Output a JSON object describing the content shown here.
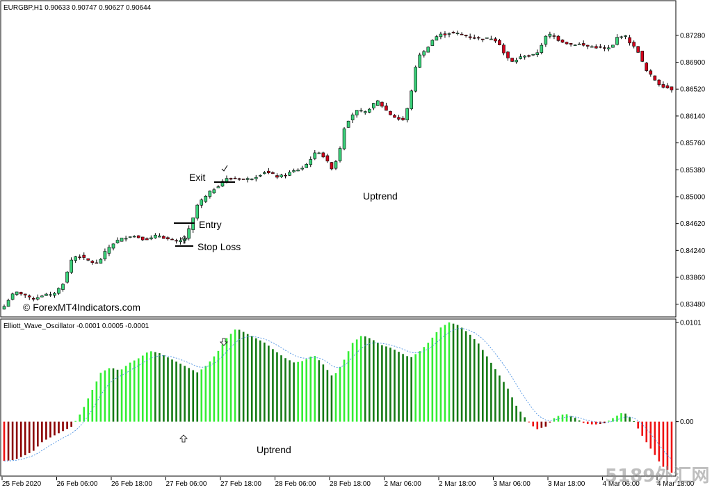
{
  "header": {
    "symbol_info": "EURGBP,H1  0.90633 0.90747 0.90627 0.90644",
    "indicator_info": "Elliott_Wave_Oscillator -0.0001 0.0005 -0.0001"
  },
  "annotations": {
    "exit": "Exit",
    "entry": "Entry",
    "stop_loss": "Stop Loss",
    "uptrend_price": "Uptrend",
    "uptrend_osc": "Uptrend",
    "copyright": "© ForexMT4Indicators.com",
    "watermark": "5189外汇网"
  },
  "colors": {
    "bull_candle": "#3ad17a",
    "bear_candle": "#d0021b",
    "osc_bright_green": "#33ee33",
    "osc_dark_green": "#157a15",
    "osc_red": "#ee1111",
    "osc_dark_red": "#8b0000",
    "signal_line": "#4a90e2"
  },
  "chart_data": [
    {
      "type": "candlestick",
      "title": "EURGBP,H1",
      "ylim": [
        0.8332,
        0.8775
      ],
      "y_ticks": [
        "0.87280",
        "0.86900",
        "0.86520",
        "0.86140",
        "0.85760",
        "0.85380",
        "0.85000",
        "0.84620",
        "0.84240",
        "0.83860",
        "0.83480"
      ],
      "x_ticks": [
        "25 Feb 2020",
        "26 Feb 06:00",
        "26 Feb 18:00",
        "27 Feb 06:00",
        "27 Feb 18:00",
        "28 Feb 06:00",
        "28 Feb 18:00",
        "2 Mar 06:00",
        "2 Mar 18:00",
        "3 Mar 06:00",
        "3 Mar 18:00",
        "4 Mar 06:00",
        "4 Mar 18:00"
      ],
      "close_path": [
        0.8345,
        0.836,
        0.8365,
        0.8362,
        0.8355,
        0.8358,
        0.8362,
        0.836,
        0.8368,
        0.838,
        0.841,
        0.8418,
        0.8412,
        0.8408,
        0.8405,
        0.842,
        0.8432,
        0.8438,
        0.8442,
        0.8445,
        0.8443,
        0.844,
        0.8441,
        0.8446,
        0.8442,
        0.8438,
        0.8436,
        0.844,
        0.846,
        0.849,
        0.8498,
        0.8508,
        0.8515,
        0.8525,
        0.8525,
        0.8526,
        0.8524,
        0.8526,
        0.853,
        0.8535,
        0.8532,
        0.8528,
        0.853,
        0.8535,
        0.8538,
        0.8542,
        0.8555,
        0.8565,
        0.8555,
        0.854,
        0.8555,
        0.86,
        0.8615,
        0.8622,
        0.8618,
        0.8628,
        0.8635,
        0.8624,
        0.8615,
        0.861,
        0.8608,
        0.865,
        0.87,
        0.8705,
        0.872,
        0.8728,
        0.873,
        0.8732,
        0.873,
        0.8728,
        0.8725,
        0.8724,
        0.8723,
        0.8724,
        0.872,
        0.87,
        0.869,
        0.8695,
        0.87,
        0.8698,
        0.8705,
        0.8725,
        0.873,
        0.8722,
        0.8718,
        0.8715,
        0.8716,
        0.8713,
        0.8712,
        0.8711,
        0.8709,
        0.871,
        0.8728,
        0.8727,
        0.8715,
        0.8705,
        0.868,
        0.867,
        0.866,
        0.8655,
        0.8652
      ],
      "annotation_markers": [
        "Exit",
        "Entry",
        "Stop Loss",
        "Uptrend"
      ]
    },
    {
      "type": "bar",
      "title": "Elliott_Wave_Oscillator",
      "ylim": [
        -0.0054,
        0.0103
      ],
      "y_ticks": [
        "0.0101",
        "0.00"
      ],
      "histogram_path": [
        -0.004,
        -0.0039,
        -0.0035,
        -0.003,
        -0.002,
        -0.0015,
        -0.001,
        -0.0005,
        0.001,
        0.003,
        0.005,
        0.0055,
        0.0052,
        0.006,
        0.0065,
        0.0072,
        0.007,
        0.0065,
        0.006,
        0.0055,
        0.005,
        0.0058,
        0.007,
        0.0085,
        0.0095,
        0.009,
        0.0085,
        0.008,
        0.0072,
        0.0065,
        0.006,
        0.0062,
        0.0068,
        0.0058,
        0.0045,
        0.006,
        0.008,
        0.0088,
        0.0084,
        0.0078,
        0.0075,
        0.007,
        0.0065,
        0.0072,
        0.0082,
        0.0095,
        0.0101,
        0.0098,
        0.009,
        0.008,
        0.0065,
        0.005,
        0.0035,
        0.0015,
        0.0002,
        -0.0008,
        -0.0005,
        0.0005,
        0.0008,
        0.0004,
        -0.0002,
        -0.0003,
        -0.0002,
        0.0004,
        0.001,
        0.0002,
        -0.0015,
        -0.003,
        -0.0045,
        -0.0052
      ],
      "annotation_markers": [
        "Uptrend"
      ]
    }
  ]
}
